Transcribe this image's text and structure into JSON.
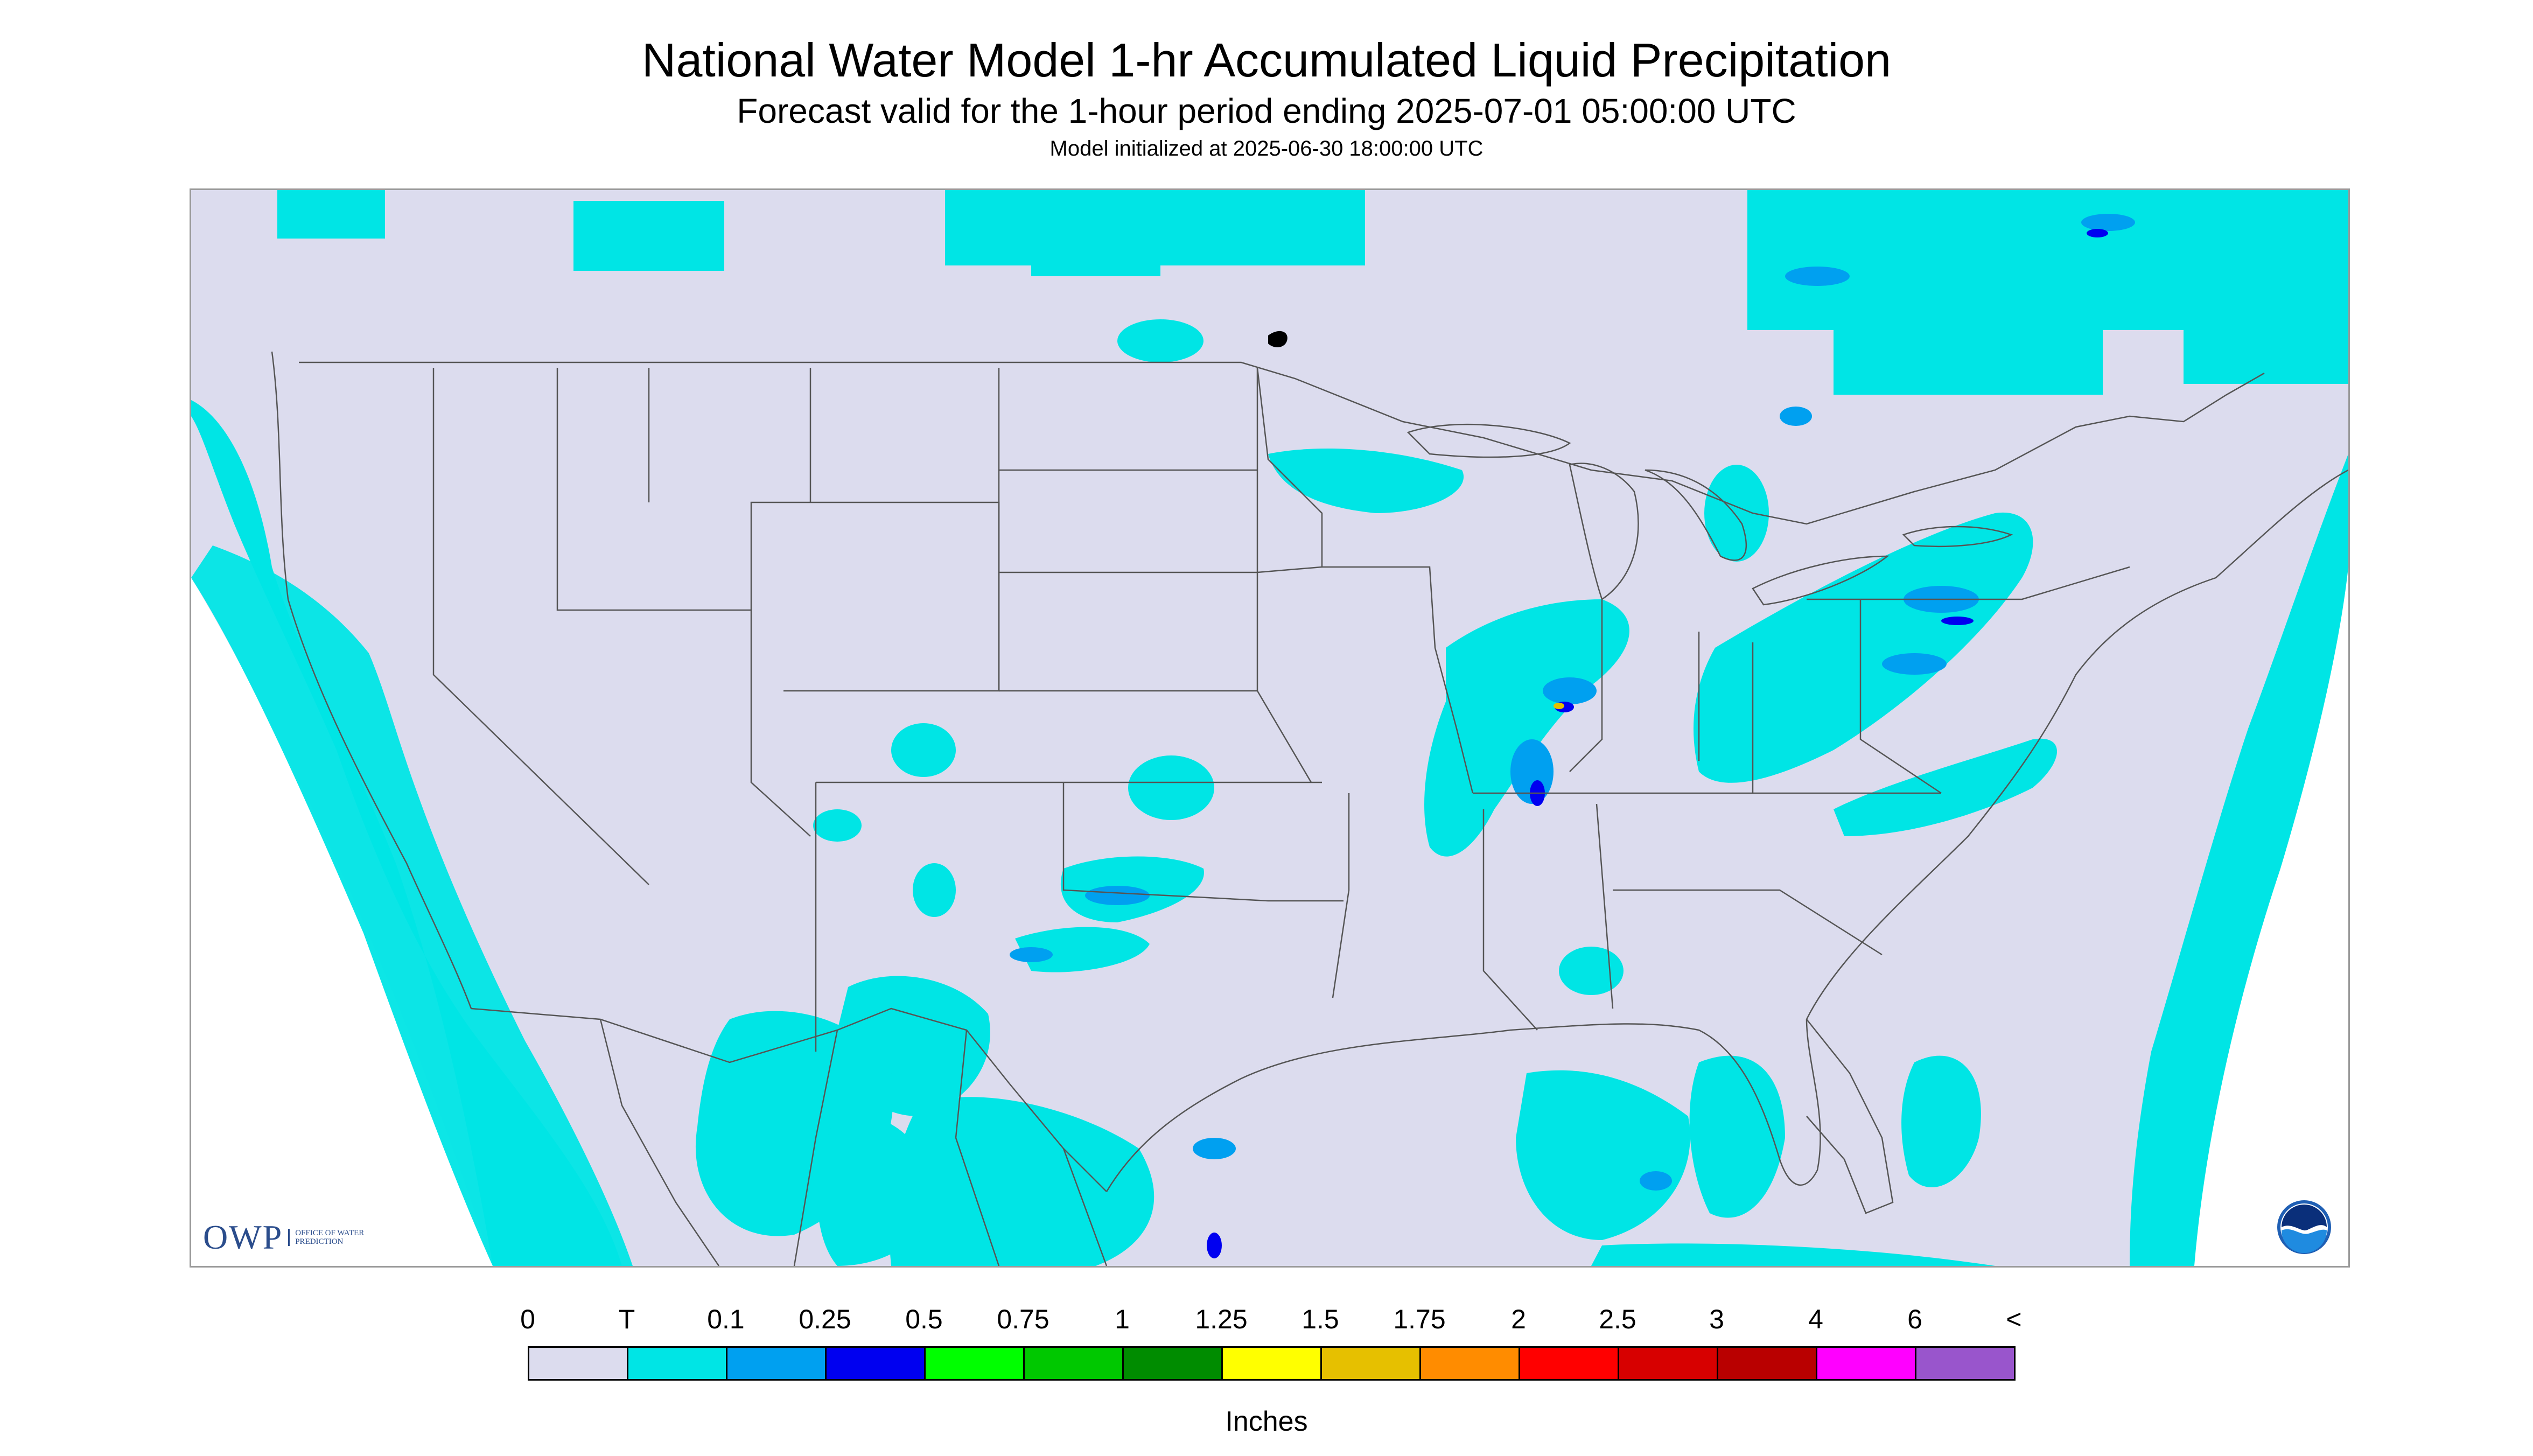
{
  "title": "National Water Model 1-hr Accumulated Liquid Precipitation",
  "subtitle": "Forecast valid for the 1-hour period ending 2025-07-01 05:00:00 UTC",
  "init_line": "Model initialized at 2025-06-30 18:00:00 UTC",
  "logos": {
    "owp_mark": "OWP",
    "owp_text": "OFFICE OF WATER PREDICTION",
    "noaa_text": "NOAA"
  },
  "legend": {
    "units": "Inches",
    "labels": [
      "0",
      "T",
      "0.1",
      "0.25",
      "0.5",
      "0.75",
      "1",
      "1.25",
      "1.5",
      "1.75",
      "2",
      "2.5",
      "3",
      "4",
      "6",
      "<"
    ],
    "colors": [
      "#dcdcee",
      "#00e5e5",
      "#00a0f0",
      "#0000f0",
      "#00ff00",
      "#00c800",
      "#008c00",
      "#ffff00",
      "#e6c000",
      "#ff8c00",
      "#ff0000",
      "#d70000",
      "#b90000",
      "#ff00ff",
      "#9955cc"
    ]
  },
  "colors": {
    "no_data": "#ffffff",
    "zero": "#dcdcee",
    "trace": "#00e5e5",
    "light": "#00a0f0",
    "moderate": "#0000f0",
    "boundary": "#555555"
  }
}
